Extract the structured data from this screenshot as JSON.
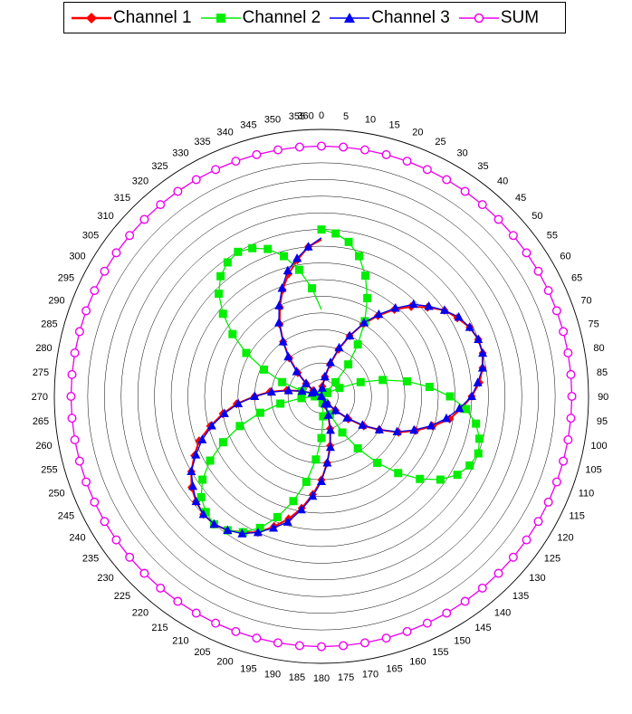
{
  "chart_data": {
    "type": "radar",
    "angle_ticks": [
      "0",
      "5",
      "10",
      "15",
      "20",
      "25",
      "30",
      "35",
      "40",
      "45",
      "50",
      "55",
      "60",
      "65",
      "70",
      "75",
      "80",
      "85",
      "90",
      "95",
      "100",
      "105",
      "110",
      "115",
      "120",
      "125",
      "130",
      "135",
      "140",
      "145",
      "150",
      "155",
      "160",
      "165",
      "170",
      "175",
      "180",
      "185",
      "190",
      "195",
      "200",
      "205",
      "210",
      "215",
      "220",
      "225",
      "230",
      "235",
      "240",
      "245",
      "250",
      "255",
      "260",
      "265",
      "270",
      "275",
      "280",
      "285",
      "290",
      "295",
      "300",
      "305",
      "310",
      "315",
      "320",
      "325",
      "330",
      "335",
      "340",
      "345",
      "350",
      "355",
      "360"
    ],
    "angles": [
      0,
      5,
      10,
      15,
      20,
      25,
      30,
      35,
      40,
      45,
      50,
      55,
      60,
      65,
      70,
      75,
      80,
      85,
      90,
      95,
      100,
      105,
      110,
      115,
      120,
      125,
      130,
      135,
      140,
      145,
      150,
      155,
      160,
      165,
      170,
      175,
      180,
      185,
      190,
      195,
      200,
      205,
      210,
      215,
      220,
      225,
      230,
      235,
      240,
      245,
      250,
      255,
      260,
      265,
      270,
      275,
      280,
      285,
      290,
      295,
      300,
      305,
      310,
      315,
      320,
      325,
      330,
      335,
      340,
      345,
      350,
      355,
      360
    ],
    "rlim": [
      0,
      1.2
    ],
    "grid": true,
    "series": [
      {
        "name": "Channel 1",
        "color": "#ff0000",
        "marker": "diamond",
        "values": [
          0.0,
          0.06,
          0.12,
          0.2,
          0.3,
          0.4,
          0.5,
          0.59,
          0.68,
          0.76,
          0.83,
          0.9,
          0.94,
          0.98,
          1.0,
          1.0,
          0.98,
          0.95,
          0.9,
          0.84,
          0.78,
          0.69,
          0.6,
          0.51,
          0.4,
          0.31,
          0.21,
          0.12,
          0.05,
          0.0,
          0.0,
          0.06,
          0.12,
          0.2,
          0.3,
          0.4,
          0.5,
          0.59,
          0.68,
          0.76,
          0.83,
          0.9,
          0.94,
          0.98,
          1.0,
          1.0,
          0.98,
          0.95,
          0.9,
          0.84,
          0.78,
          0.69,
          0.6,
          0.51,
          0.4,
          0.31,
          0.21,
          0.12,
          0.05,
          0.0,
          0.0,
          0.06,
          0.12,
          0.2,
          0.3,
          0.4,
          0.5,
          0.59,
          0.68,
          0.76,
          0.83,
          0.9,
          0.94
        ]
      },
      {
        "name": "Channel 2",
        "color": "#00ee00",
        "marker": "square",
        "values": [
          1.0,
          0.98,
          0.94,
          0.87,
          0.77,
          0.65,
          0.52,
          0.38,
          0.25,
          0.12,
          0.04,
          0.0,
          0.04,
          0.12,
          0.25,
          0.38,
          0.52,
          0.65,
          0.77,
          0.87,
          0.94,
          0.98,
          1.0,
          0.98,
          0.94,
          0.87,
          0.77,
          0.65,
          0.52,
          0.38,
          0.25,
          0.12,
          0.04,
          0.0,
          0.04,
          0.12,
          0.25,
          0.38,
          0.52,
          0.65,
          0.77,
          0.87,
          0.94,
          0.98,
          1.0,
          0.98,
          0.94,
          0.87,
          0.77,
          0.65,
          0.52,
          0.38,
          0.25,
          0.12,
          0.04,
          0.0,
          0.04,
          0.12,
          0.25,
          0.38,
          0.52,
          0.65,
          0.77,
          0.87,
          0.94,
          0.98,
          1.0,
          0.98,
          0.94,
          0.87,
          0.77,
          0.65,
          0.52
        ]
      },
      {
        "name": "Channel 3",
        "color": "#0000ee",
        "marker": "triangle",
        "values": [
          0.0,
          0.05,
          0.12,
          0.21,
          0.31,
          0.4,
          0.51,
          0.6,
          0.69,
          0.78,
          0.84,
          0.9,
          0.95,
          0.98,
          1.0,
          1.0,
          0.98,
          0.94,
          0.9,
          0.83,
          0.76,
          0.68,
          0.59,
          0.5,
          0.4,
          0.3,
          0.2,
          0.12,
          0.06,
          0.0,
          0.0,
          0.05,
          0.12,
          0.21,
          0.31,
          0.4,
          0.51,
          0.6,
          0.69,
          0.78,
          0.84,
          0.9,
          0.95,
          0.98,
          1.0,
          1.0,
          0.98,
          0.94,
          0.9,
          0.83,
          0.76,
          0.68,
          0.59,
          0.5,
          0.4,
          0.3,
          0.2,
          0.12,
          0.06,
          0.0,
          0.0,
          0.05,
          0.12,
          0.21,
          0.31,
          0.4,
          0.51,
          0.6,
          0.69,
          0.78,
          0.84,
          0.9,
          0.95
        ]
      },
      {
        "name": "SUM",
        "color": "#ee00ee",
        "marker": "circle-open",
        "values": [
          1.5,
          1.5,
          1.5,
          1.5,
          1.5,
          1.5,
          1.5,
          1.5,
          1.5,
          1.5,
          1.5,
          1.5,
          1.5,
          1.5,
          1.5,
          1.5,
          1.5,
          1.5,
          1.5,
          1.5,
          1.5,
          1.5,
          1.5,
          1.5,
          1.5,
          1.5,
          1.5,
          1.5,
          1.5,
          1.5,
          1.5,
          1.5,
          1.5,
          1.5,
          1.5,
          1.5,
          1.5,
          1.5,
          1.5,
          1.5,
          1.5,
          1.5,
          1.5,
          1.5,
          1.5,
          1.5,
          1.5,
          1.5,
          1.5,
          1.5,
          1.5,
          1.5,
          1.5,
          1.5,
          1.5,
          1.5,
          1.5,
          1.5,
          1.5,
          1.5,
          1.5,
          1.5,
          1.5,
          1.5,
          1.5,
          1.5,
          1.5,
          1.5,
          1.5,
          1.5,
          1.5,
          1.5,
          1.5
        ]
      }
    ],
    "legend_position": "top"
  }
}
